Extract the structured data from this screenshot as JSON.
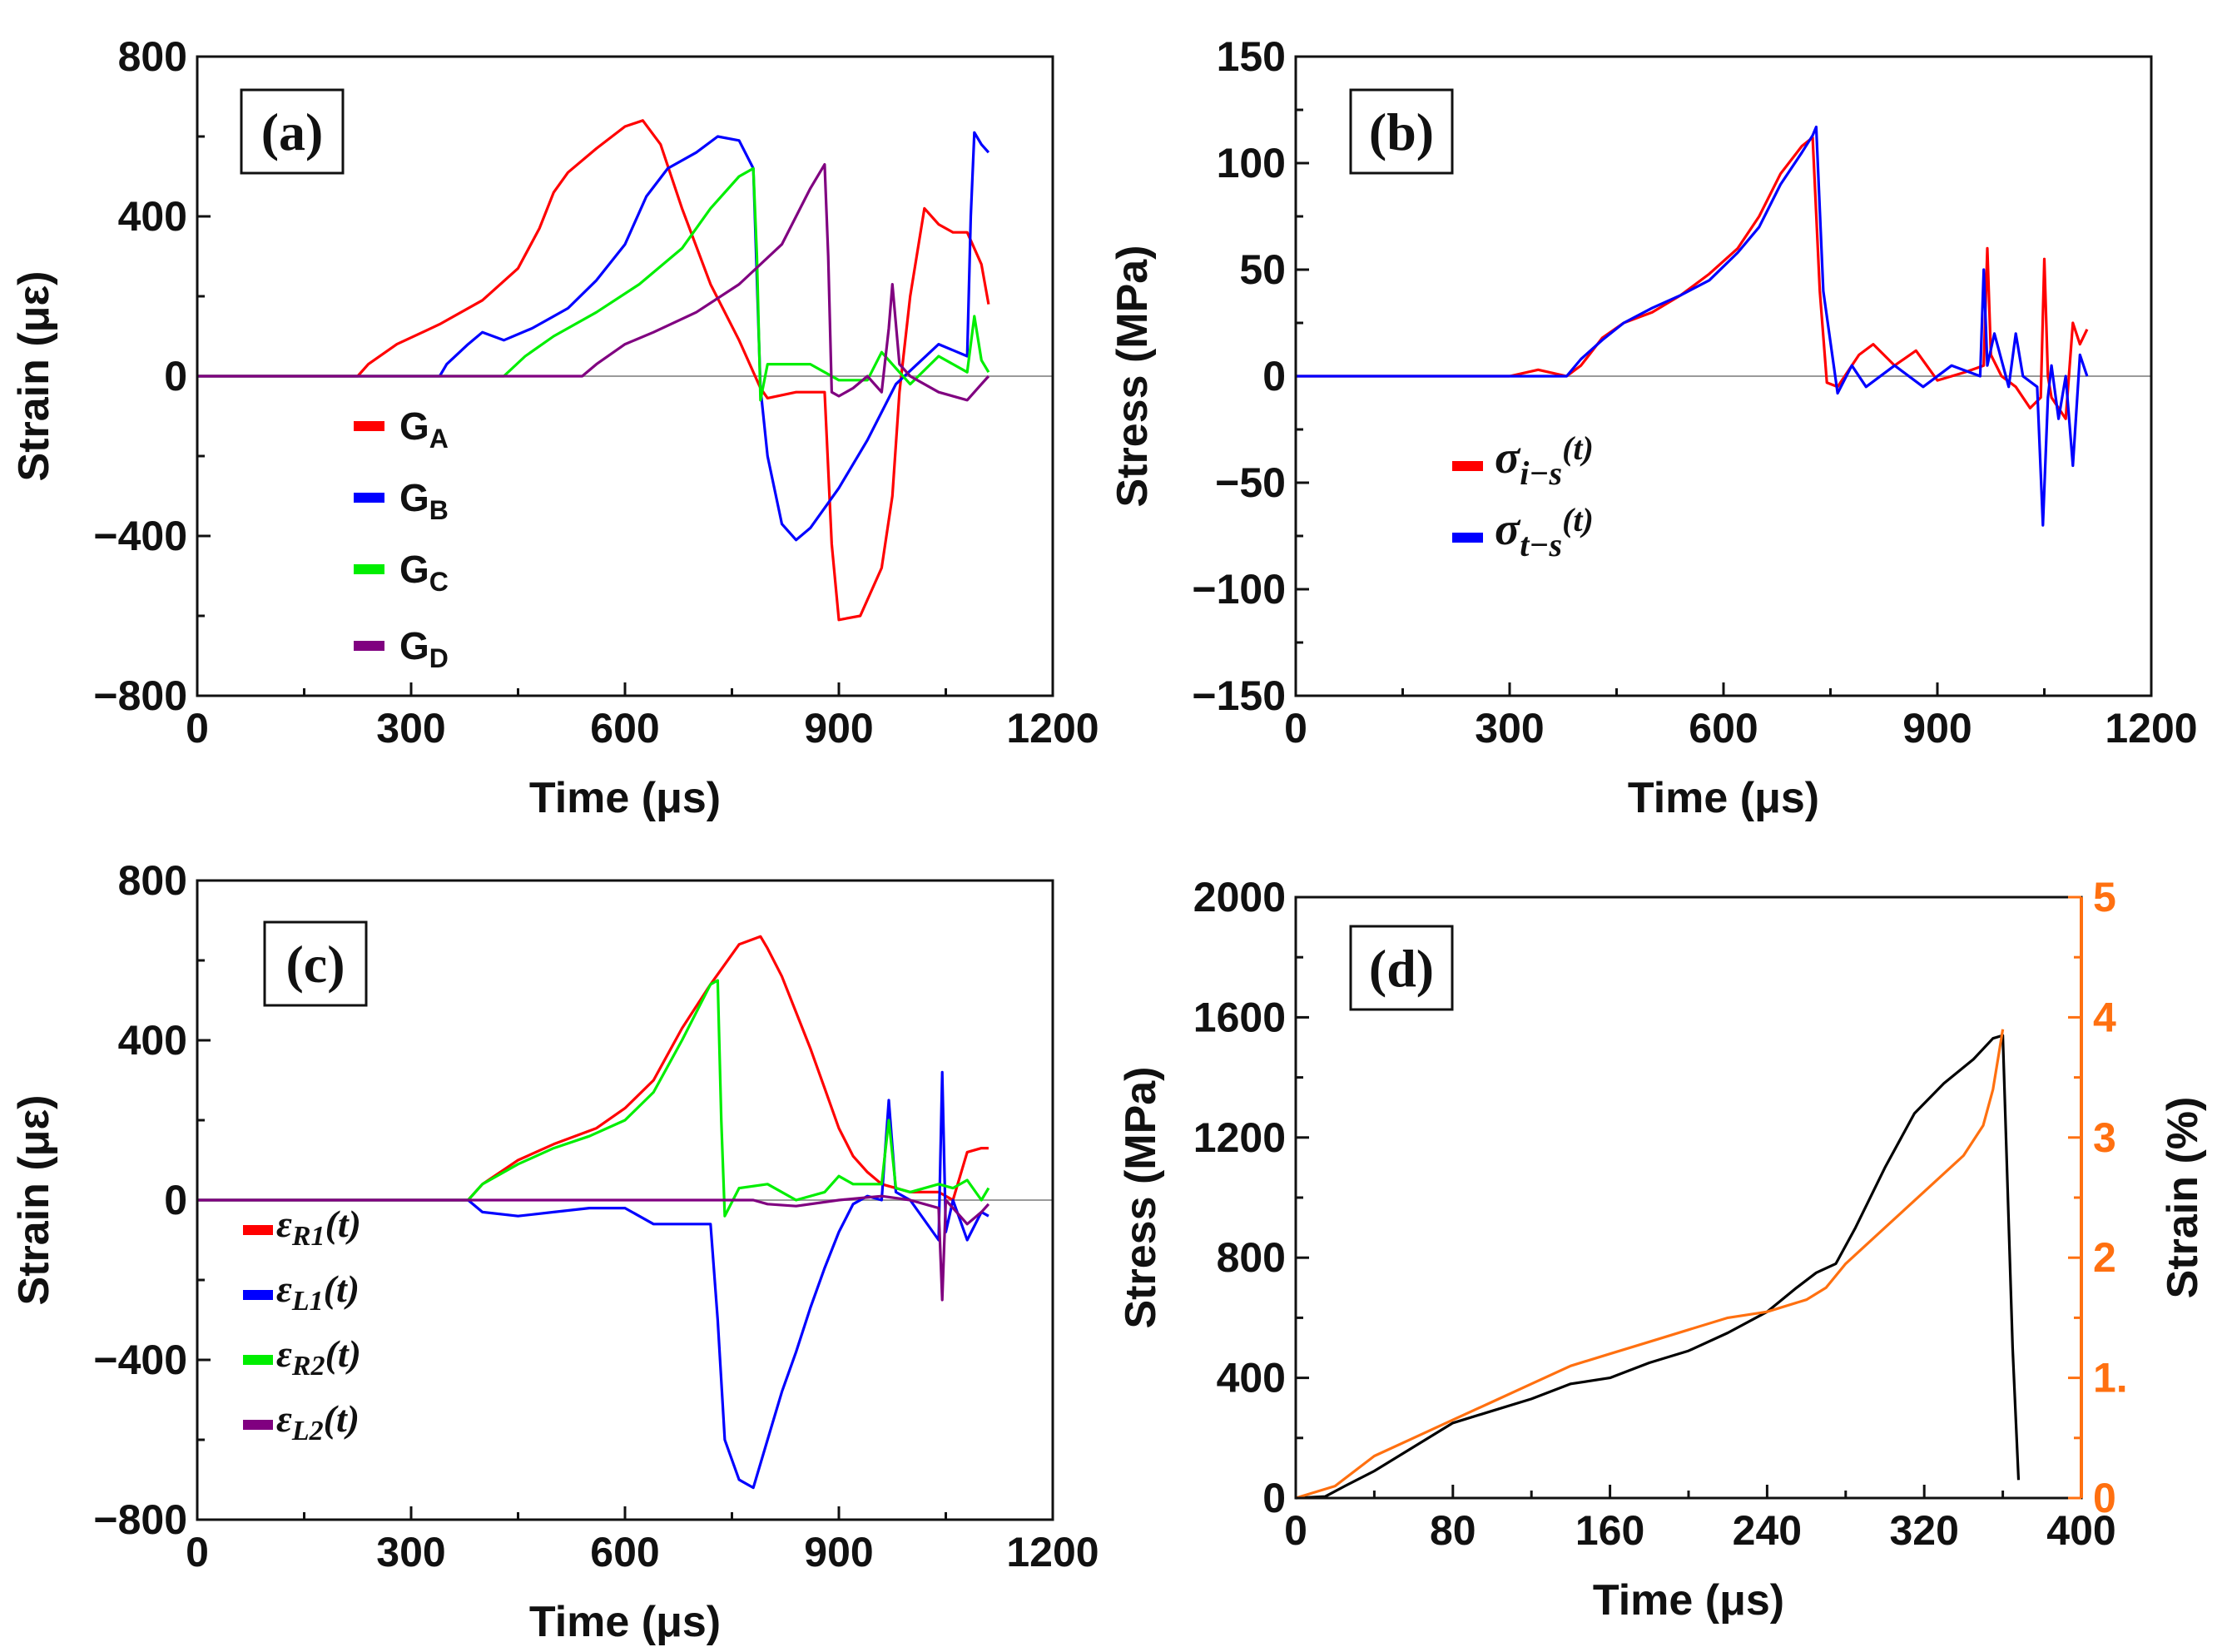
{
  "panels": [
    {
      "id": "a",
      "label": "(a)",
      "xlabel": "Time (μs)",
      "ylabel": "Strain (με)",
      "xlim": [
        0,
        1200
      ],
      "ylim": [
        -800,
        800
      ],
      "xticks": [
        0,
        300,
        600,
        900,
        1200
      ],
      "yticks": [
        -800,
        -400,
        0,
        400,
        800
      ],
      "xtick_labels": [
        "0",
        "300",
        "600",
        "900",
        "1200"
      ],
      "ytick_labels": [
        "−800",
        "−400",
        "0",
        "400",
        "800"
      ],
      "legend": [
        {
          "base": "G",
          "sub": "A",
          "color": "#ff0000"
        },
        {
          "base": "G",
          "sub": "B",
          "color": "#0000ff"
        },
        {
          "base": "G",
          "sub": "C",
          "color": "#00ee00"
        },
        {
          "base": "G",
          "sub": "D",
          "color": "#800080"
        }
      ]
    },
    {
      "id": "b",
      "label": "(b)",
      "xlabel": "Time (μs)",
      "ylabel": "Stress (MPa)",
      "xlim": [
        0,
        1200
      ],
      "ylim": [
        -150,
        150
      ],
      "xticks": [
        0,
        300,
        600,
        900,
        1200
      ],
      "yticks": [
        -150,
        -100,
        -50,
        0,
        50,
        100,
        150
      ],
      "xtick_labels": [
        "0",
        "300",
        "600",
        "900",
        "1200"
      ],
      "ytick_labels": [
        "−150",
        "−100",
        "−50",
        "0",
        "50",
        "100",
        "150"
      ],
      "legend": [
        {
          "base": "σ",
          "sub": "i−s",
          "tail": "(t)",
          "color": "#ff0000"
        },
        {
          "base": "σ",
          "sub": "t−s",
          "tail": "(t)",
          "color": "#0000ff"
        }
      ]
    },
    {
      "id": "c",
      "label": "(c)",
      "xlabel": "Time (μs)",
      "ylabel": "Strain (με)",
      "xlim": [
        0,
        1200
      ],
      "ylim": [
        -800,
        800
      ],
      "xticks": [
        0,
        300,
        600,
        900,
        1200
      ],
      "yticks": [
        -800,
        -400,
        0,
        400,
        800
      ],
      "xtick_labels": [
        "0",
        "300",
        "600",
        "900",
        "1200"
      ],
      "ytick_labels": [
        "−800",
        "−400",
        "0",
        "400",
        "800"
      ],
      "legend": [
        {
          "base": "ε",
          "sub": "R1",
          "tail": "(t)",
          "color": "#ff0000"
        },
        {
          "base": "ε",
          "sub": "L1",
          "tail": "(t)",
          "color": "#0000ff"
        },
        {
          "base": "ε",
          "sub": "R2",
          "tail": "(t)",
          "color": "#00ee00"
        },
        {
          "base": "ε",
          "sub": "L2",
          "tail": "(t)",
          "color": "#800080"
        }
      ]
    },
    {
      "id": "d",
      "label": "(d)",
      "xlabel": "Time (μs)",
      "ylabel": "Stress (MPa)",
      "ylabel_right": "Strain (%)",
      "xlim": [
        0,
        400
      ],
      "ylim": [
        0,
        2000
      ],
      "ylim_right": [
        0,
        5
      ],
      "xticks": [
        0,
        80,
        160,
        240,
        320,
        400
      ],
      "yticks": [
        0,
        400,
        800,
        1200,
        1600,
        2000
      ],
      "yticks_right": [
        0,
        1,
        2,
        3,
        4,
        5
      ],
      "xtick_labels": [
        "0",
        "80",
        "160",
        "240",
        "320",
        "400"
      ],
      "ytick_labels": [
        "0",
        "400",
        "800",
        "1200",
        "1600",
        "2000"
      ],
      "ytick_labels_right": [
        "0",
        "1.",
        "2",
        "3",
        "4",
        "5"
      ],
      "right_axis_color": "#ff7010"
    }
  ],
  "chart_data": [
    {
      "type": "line",
      "panel": "a",
      "title": "(a)",
      "xlabel": "Time (μs)",
      "ylabel": "Strain (με)",
      "xlim": [
        0,
        1200
      ],
      "ylim": [
        -800,
        800
      ],
      "series": [
        {
          "name": "GA",
          "color": "#ff0000",
          "x": [
            0,
            225,
            240,
            280,
            340,
            400,
            450,
            480,
            500,
            520,
            560,
            600,
            625,
            650,
            680,
            720,
            760,
            790,
            800,
            840,
            880,
            890,
            900,
            930,
            960,
            975,
            985,
            1000,
            1020,
            1040,
            1060,
            1080,
            1100,
            1110
          ],
          "y": [
            0,
            0,
            30,
            80,
            130,
            190,
            270,
            370,
            460,
            510,
            570,
            625,
            640,
            580,
            420,
            230,
            90,
            -30,
            -55,
            -40,
            -40,
            -420,
            -610,
            -600,
            -480,
            -300,
            -40,
            200,
            420,
            380,
            360,
            360,
            280,
            180
          ]
        },
        {
          "name": "GB",
          "color": "#0000ff",
          "x": [
            0,
            340,
            350,
            380,
            400,
            430,
            470,
            520,
            560,
            600,
            630,
            660,
            700,
            730,
            760,
            780,
            790,
            800,
            820,
            840,
            860,
            900,
            940,
            980,
            1040,
            1080,
            1085,
            1090,
            1100,
            1110
          ],
          "y": [
            0,
            0,
            30,
            80,
            110,
            90,
            120,
            170,
            240,
            330,
            450,
            520,
            560,
            600,
            590,
            520,
            -30,
            -200,
            -370,
            -410,
            -380,
            -280,
            -160,
            -20,
            80,
            50,
            400,
            610,
            580,
            560
          ]
        },
        {
          "name": "GC",
          "color": "#00ee00",
          "x": [
            0,
            430,
            460,
            500,
            560,
            620,
            680,
            720,
            760,
            780,
            785,
            790,
            800,
            830,
            860,
            900,
            940,
            960,
            980,
            1000,
            1040,
            1080,
            1090,
            1100,
            1110
          ],
          "y": [
            0,
            0,
            50,
            100,
            160,
            230,
            320,
            420,
            500,
            520,
            300,
            -60,
            30,
            30,
            30,
            -10,
            -10,
            60,
            20,
            -20,
            50,
            10,
            150,
            40,
            10
          ]
        },
        {
          "name": "GD",
          "color": "#800080",
          "x": [
            0,
            540,
            560,
            600,
            640,
            700,
            760,
            820,
            860,
            880,
            885,
            890,
            900,
            920,
            940,
            960,
            970,
            975,
            985,
            1000,
            1040,
            1080,
            1100,
            1110
          ],
          "y": [
            0,
            0,
            30,
            80,
            110,
            160,
            230,
            330,
            470,
            530,
            300,
            -40,
            -50,
            -30,
            0,
            -40,
            120,
            230,
            30,
            0,
            -40,
            -60,
            -20,
            0
          ]
        }
      ]
    },
    {
      "type": "line",
      "panel": "b",
      "title": "(b)",
      "xlabel": "Time (μs)",
      "ylabel": "Stress (MPa)",
      "xlim": [
        0,
        1200
      ],
      "ylim": [
        -150,
        150
      ],
      "series": [
        {
          "name": "σi-s(t)",
          "color": "#ff0000",
          "x": [
            0,
            300,
            340,
            380,
            400,
            430,
            460,
            500,
            540,
            580,
            620,
            650,
            680,
            710,
            725,
            735,
            745,
            760,
            790,
            810,
            840,
            870,
            900,
            940,
            965,
            970,
            975,
            990,
            1010,
            1030,
            1045,
            1050,
            1055,
            1060,
            1080,
            1090,
            1100,
            1110
          ],
          "y": [
            0,
            0,
            3,
            0,
            5,
            18,
            25,
            30,
            38,
            48,
            60,
            75,
            95,
            108,
            112,
            40,
            -3,
            -5,
            10,
            15,
            5,
            12,
            -2,
            2,
            5,
            60,
            10,
            0,
            -5,
            -15,
            -10,
            55,
            0,
            -10,
            -20,
            25,
            15,
            22
          ]
        },
        {
          "name": "σt-s(t)",
          "color": "#0000ff",
          "x": [
            0,
            380,
            400,
            430,
            460,
            500,
            540,
            580,
            620,
            650,
            680,
            710,
            725,
            730,
            740,
            760,
            780,
            800,
            840,
            880,
            920,
            960,
            965,
            970,
            980,
            1000,
            1010,
            1020,
            1040,
            1048,
            1055,
            1060,
            1070,
            1080,
            1090,
            1100,
            1110
          ],
          "y": [
            0,
            0,
            8,
            17,
            25,
            32,
            38,
            45,
            58,
            70,
            90,
            105,
            113,
            117,
            40,
            -8,
            5,
            -5,
            5,
            -5,
            5,
            0,
            50,
            5,
            20,
            -5,
            20,
            0,
            -5,
            -70,
            -10,
            5,
            -20,
            0,
            -42,
            10,
            0
          ]
        }
      ]
    },
    {
      "type": "line",
      "panel": "c",
      "title": "(c)",
      "xlabel": "Time (μs)",
      "ylabel": "Strain (με)",
      "xlim": [
        0,
        1200
      ],
      "ylim": [
        -800,
        800
      ],
      "series": [
        {
          "name": "εR1(t)",
          "color": "#ff0000",
          "x": [
            0,
            380,
            400,
            450,
            500,
            560,
            600,
            640,
            680,
            720,
            760,
            790,
            800,
            820,
            840,
            860,
            880,
            900,
            920,
            940,
            960,
            980,
            1000,
            1040,
            1060,
            1080,
            1100,
            1110
          ],
          "y": [
            0,
            0,
            40,
            100,
            140,
            180,
            230,
            300,
            430,
            540,
            640,
            660,
            630,
            560,
            470,
            380,
            280,
            180,
            110,
            70,
            40,
            30,
            20,
            20,
            0,
            120,
            130,
            130
          ]
        },
        {
          "name": "εL1(t)",
          "color": "#0000ff",
          "x": [
            0,
            380,
            400,
            450,
            500,
            550,
            600,
            640,
            680,
            720,
            730,
            740,
            760,
            780,
            800,
            820,
            840,
            860,
            880,
            900,
            920,
            940,
            960,
            970,
            980,
            1000,
            1040,
            1045,
            1050,
            1060,
            1080,
            1100,
            1110
          ],
          "y": [
            0,
            0,
            -30,
            -40,
            -30,
            -20,
            -20,
            -60,
            -60,
            -60,
            -300,
            -600,
            -700,
            -720,
            -600,
            -480,
            -380,
            -270,
            -170,
            -80,
            -10,
            10,
            0,
            250,
            20,
            0,
            -100,
            320,
            -80,
            0,
            -100,
            -30,
            -40
          ]
        },
        {
          "name": "εR2(t)",
          "color": "#00ee00",
          "x": [
            0,
            380,
            400,
            450,
            500,
            550,
            600,
            640,
            680,
            720,
            730,
            735,
            740,
            760,
            800,
            840,
            880,
            900,
            920,
            960,
            970,
            980,
            1000,
            1040,
            1060,
            1080,
            1100,
            1110
          ],
          "y": [
            0,
            0,
            40,
            90,
            130,
            160,
            200,
            270,
            400,
            540,
            550,
            200,
            -40,
            30,
            40,
            0,
            20,
            60,
            40,
            40,
            200,
            30,
            20,
            40,
            30,
            50,
            0,
            30
          ]
        },
        {
          "name": "εL2(t)",
          "color": "#800080",
          "x": [
            0,
            400,
            500,
            600,
            700,
            780,
            800,
            840,
            900,
            960,
            1000,
            1040,
            1045,
            1050,
            1060,
            1080,
            1100,
            1110
          ],
          "y": [
            0,
            0,
            0,
            0,
            0,
            0,
            -10,
            -15,
            0,
            10,
            0,
            -20,
            -250,
            0,
            -20,
            -60,
            -30,
            -10
          ]
        }
      ]
    },
    {
      "type": "line",
      "panel": "d",
      "title": "(d)",
      "xlabel": "Time (μs)",
      "ylabel": "Stress (MPa)",
      "ylabel_right": "Strain (%)",
      "xlim": [
        0,
        400
      ],
      "ylim": [
        0,
        2000
      ],
      "ylim_right": [
        0,
        5
      ],
      "series": [
        {
          "name": "Stress",
          "axis": "left",
          "color": "#000000",
          "x": [
            0,
            15,
            25,
            40,
            60,
            80,
            100,
            120,
            140,
            160,
            180,
            200,
            220,
            240,
            255,
            265,
            275,
            285,
            300,
            315,
            330,
            345,
            355,
            360,
            365,
            368
          ],
          "y": [
            0,
            5,
            40,
            90,
            170,
            250,
            290,
            330,
            380,
            400,
            450,
            490,
            550,
            620,
            700,
            750,
            780,
            900,
            1100,
            1280,
            1380,
            1460,
            1530,
            1540,
            500,
            60
          ]
        },
        {
          "name": "Strain",
          "axis": "right",
          "color": "#ff7010",
          "x": [
            0,
            20,
            40,
            60,
            80,
            100,
            120,
            140,
            160,
            180,
            200,
            220,
            240,
            260,
            270,
            280,
            300,
            320,
            340,
            350,
            355,
            358,
            360
          ],
          "y": [
            0,
            0.1,
            0.35,
            0.5,
            0.65,
            0.8,
            0.95,
            1.1,
            1.2,
            1.3,
            1.4,
            1.5,
            1.55,
            1.65,
            1.75,
            1.95,
            2.25,
            2.55,
            2.85,
            3.1,
            3.4,
            3.7,
            3.9
          ]
        }
      ]
    }
  ]
}
